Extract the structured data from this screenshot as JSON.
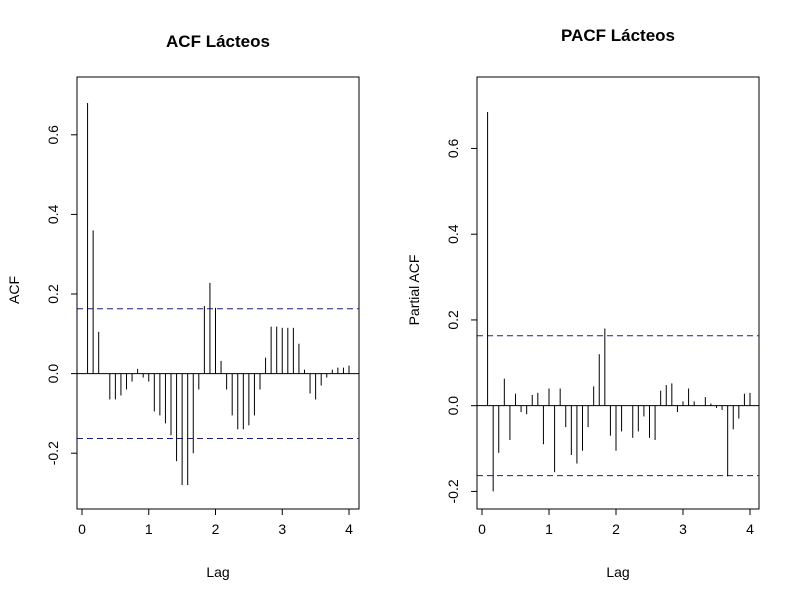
{
  "chart_data": [
    {
      "id": "acf",
      "type": "bar",
      "title": "ACF Lácteos",
      "xlabel": "Lag",
      "ylabel": "ACF",
      "xlim": [
        0,
        4
      ],
      "ylim": [
        -0.3,
        0.7
      ],
      "xticks": [
        0,
        1,
        2,
        3,
        4
      ],
      "yticks": [
        -0.2,
        0.0,
        0.2,
        0.4,
        0.6
      ],
      "conf_limits": [
        0.163,
        -0.163
      ],
      "colors": {
        "spike": "#000000",
        "conf": "#1f1f7a"
      },
      "series": [
        {
          "x": [
            0.0833,
            0.1667,
            0.25,
            0.3333,
            0.4167,
            0.5,
            0.5833,
            0.6667,
            0.75,
            0.8333,
            0.9167,
            1.0,
            1.0833,
            1.1667,
            1.25,
            1.3333,
            1.4167,
            1.5,
            1.5833,
            1.6667,
            1.75,
            1.8333,
            1.9167,
            2.0,
            2.0833,
            2.1667,
            2.25,
            2.3333,
            2.4167,
            2.5,
            2.5833,
            2.6667,
            2.75,
            2.8333,
            2.9167,
            3.0,
            3.0833,
            3.1667,
            3.25,
            3.3333,
            3.4167,
            3.5,
            3.5833,
            3.6667,
            3.75,
            3.8333,
            3.9167,
            4.0
          ],
          "values": [
            0.68,
            0.36,
            0.105,
            0.0,
            -0.065,
            -0.065,
            -0.055,
            -0.04,
            -0.02,
            0.012,
            -0.01,
            -0.02,
            -0.095,
            -0.105,
            -0.125,
            -0.155,
            -0.22,
            -0.28,
            -0.28,
            -0.2,
            -0.04,
            0.17,
            0.228,
            0.165,
            0.032,
            -0.04,
            -0.105,
            -0.14,
            -0.14,
            -0.13,
            -0.105,
            -0.04,
            0.04,
            0.118,
            0.118,
            0.115,
            0.115,
            0.115,
            0.075,
            0.01,
            -0.05,
            -0.065,
            -0.03,
            -0.01,
            0.01,
            0.015,
            0.015,
            0.02
          ]
        }
      ]
    },
    {
      "id": "pacf",
      "type": "bar",
      "title": "PACF Lácteos",
      "xlabel": "Lag",
      "ylabel": "Partial ACF",
      "xlim": [
        0,
        4
      ],
      "ylim": [
        -0.22,
        0.72
      ],
      "xticks": [
        0,
        1,
        2,
        3,
        4
      ],
      "yticks": [
        -0.2,
        0.0,
        0.2,
        0.4,
        0.6
      ],
      "conf_limits": [
        0.163,
        -0.163
      ],
      "colors": {
        "spike": "#000000",
        "conf": "#1f1f7a"
      },
      "series": [
        {
          "x": [
            0.0833,
            0.1667,
            0.25,
            0.3333,
            0.4167,
            0.5,
            0.5833,
            0.6667,
            0.75,
            0.8333,
            0.9167,
            1.0,
            1.0833,
            1.1667,
            1.25,
            1.3333,
            1.4167,
            1.5,
            1.5833,
            1.6667,
            1.75,
            1.8333,
            1.9167,
            2.0,
            2.0833,
            2.1667,
            2.25,
            2.3333,
            2.4167,
            2.5,
            2.5833,
            2.6667,
            2.75,
            2.8333,
            2.9167,
            3.0,
            3.0833,
            3.1667,
            3.25,
            3.3333,
            3.4167,
            3.5,
            3.5833,
            3.6667,
            3.75,
            3.8333,
            3.9167,
            4.0
          ],
          "values": [
            0.685,
            -0.2,
            -0.11,
            0.063,
            -0.08,
            0.028,
            -0.015,
            -0.02,
            0.025,
            0.03,
            -0.09,
            0.04,
            -0.155,
            0.04,
            -0.05,
            -0.115,
            -0.135,
            -0.105,
            -0.05,
            0.045,
            0.12,
            0.18,
            -0.07,
            -0.105,
            -0.06,
            0.0,
            -0.075,
            -0.06,
            -0.025,
            -0.075,
            -0.08,
            0.035,
            0.048,
            0.052,
            -0.015,
            0.01,
            0.04,
            0.01,
            0.0,
            0.02,
            0.005,
            -0.005,
            -0.01,
            -0.165,
            -0.055,
            -0.03,
            0.028,
            0.03
          ]
        }
      ]
    }
  ]
}
